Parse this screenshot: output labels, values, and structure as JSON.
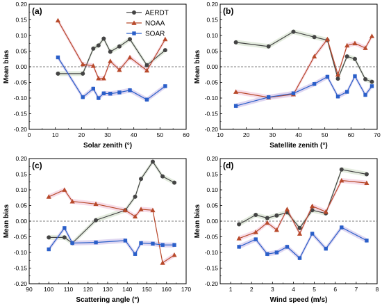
{
  "chart_data": [
    {
      "type": "line",
      "panel_label": "(a)",
      "xlabel": "Solar zenith (°)",
      "ylabel": "Mean bias",
      "xlim": [
        0,
        60
      ],
      "ylim": [
        -0.2,
        0.2
      ],
      "xticks": [
        "0",
        "10",
        "20",
        "30",
        "40",
        "50",
        "60"
      ],
      "yticks": [
        "-0.20",
        "-0.15",
        "-0.10",
        "-0.05",
        "0.00",
        "0.05",
        "0.10",
        "0.15",
        "0.20"
      ],
      "legend": {
        "placement": "top-right"
      },
      "series": [
        {
          "name": "AERDT",
          "x": [
            11,
            20.5,
            24.5,
            26.5,
            28.5,
            31,
            34.5,
            38.5,
            45,
            52
          ],
          "y": [
            -0.022,
            -0.022,
            0.058,
            0.068,
            0.09,
            0.048,
            0.065,
            0.088,
            0.005,
            0.053
          ]
        },
        {
          "name": "NOAA",
          "x": [
            11,
            20.5,
            24.5,
            26.5,
            28.5,
            31,
            34.5,
            38.5,
            45,
            52
          ],
          "y": [
            0.148,
            0.008,
            0.003,
            -0.037,
            -0.037,
            0.018,
            -0.01,
            0.03,
            -0.012,
            0.088
          ]
        },
        {
          "name": "SOAR",
          "x": [
            11,
            20.5,
            24.5,
            26.5,
            28.5,
            31,
            34.5,
            38.5,
            45,
            52
          ],
          "y": [
            0.03,
            -0.097,
            -0.07,
            -0.1,
            -0.085,
            -0.086,
            -0.082,
            -0.075,
            -0.105,
            -0.062
          ]
        }
      ]
    },
    {
      "type": "line",
      "panel_label": "(b)",
      "xlabel": "Satellite zenith (°)",
      "ylabel": "Mean bias",
      "xlim": [
        10,
        70
      ],
      "ylim": [
        -0.2,
        0.2
      ],
      "xticks": [
        "10",
        "20",
        "30",
        "40",
        "50",
        "60",
        "70"
      ],
      "yticks": [
        "-0.20",
        "-0.15",
        "-0.10",
        "-0.05",
        "0.00",
        "0.05",
        "0.10",
        "0.15",
        "0.20"
      ],
      "series": [
        {
          "name": "AERDT",
          "x": [
            16,
            28.5,
            38,
            46,
            51,
            55,
            58.5,
            61.5,
            65.5,
            68
          ],
          "y": [
            0.078,
            0.065,
            0.112,
            0.095,
            0.085,
            -0.038,
            0.033,
            0.025,
            -0.04,
            -0.048
          ]
        },
        {
          "name": "NOAA",
          "x": [
            16,
            28.5,
            38,
            46,
            51,
            55,
            58.5,
            61.5,
            65.5,
            68
          ],
          "y": [
            -0.08,
            -0.098,
            -0.088,
            0.033,
            0.088,
            -0.025,
            0.068,
            0.075,
            0.06,
            0.098
          ]
        },
        {
          "name": "SOAR",
          "x": [
            16,
            28.5,
            38,
            46,
            51,
            55,
            58.5,
            61.5,
            65.5,
            68
          ],
          "y": [
            -0.125,
            -0.097,
            -0.085,
            -0.055,
            -0.032,
            -0.095,
            -0.08,
            -0.03,
            -0.09,
            -0.062
          ]
        }
      ]
    },
    {
      "type": "line",
      "panel_label": "(c)",
      "xlabel": "Scattering angle (°)",
      "ylabel": "Mean bias",
      "xlim": [
        90,
        170
      ],
      "ylim": [
        -0.2,
        0.2
      ],
      "xticks": [
        "90",
        "100",
        "110",
        "120",
        "130",
        "140",
        "150",
        "160",
        "170"
      ],
      "yticks": [
        "-0.20",
        "-0.15",
        "-0.10",
        "-0.05",
        "0.00",
        "0.05",
        "0.10",
        "0.15",
        "0.20"
      ],
      "series": [
        {
          "name": "AERDT",
          "x": [
            100,
            108,
            112,
            124,
            139,
            144,
            147,
            153,
            158,
            164
          ],
          "y": [
            -0.052,
            -0.052,
            -0.07,
            0.003,
            0.035,
            0.078,
            0.135,
            0.19,
            0.143,
            0.123
          ]
        },
        {
          "name": "NOAA",
          "x": [
            100,
            108,
            112,
            124,
            139,
            144,
            147,
            153,
            158,
            164
          ],
          "y": [
            0.078,
            0.1,
            0.063,
            0.055,
            0.035,
            0.015,
            0.038,
            0.035,
            -0.133,
            -0.108
          ]
        },
        {
          "name": "SOAR",
          "x": [
            100,
            108,
            112,
            124,
            139,
            144,
            147,
            153,
            158,
            164
          ],
          "y": [
            -0.09,
            -0.022,
            -0.07,
            -0.068,
            -0.062,
            -0.105,
            -0.07,
            -0.072,
            -0.076,
            -0.076
          ]
        }
      ]
    },
    {
      "type": "line",
      "panel_label": "(d)",
      "xlabel": "Wind speed (m/s)",
      "ylabel": "Mean bias",
      "xlim": [
        0.5,
        8
      ],
      "ylim": [
        -0.2,
        0.2
      ],
      "xticks": [
        "1",
        "2",
        "3",
        "4",
        "5",
        "6",
        "7",
        "8"
      ],
      "yticks": [
        "-0.20",
        "-0.15",
        "-0.10",
        "-0.05",
        "0.00",
        "0.05",
        "0.10",
        "0.15",
        "0.20"
      ],
      "series": [
        {
          "name": "AERDT",
          "x": [
            1.4,
            2.2,
            2.75,
            3.2,
            3.7,
            4.3,
            4.9,
            5.55,
            6.3,
            7.5
          ],
          "y": [
            -0.01,
            0.02,
            0.01,
            0.018,
            0.028,
            -0.022,
            0.035,
            0.025,
            0.165,
            0.15
          ]
        },
        {
          "name": "NOAA",
          "x": [
            1.4,
            2.2,
            2.75,
            3.2,
            3.7,
            4.3,
            4.9,
            5.55,
            6.3,
            7.5
          ],
          "y": [
            -0.055,
            -0.035,
            -0.005,
            -0.028,
            0.038,
            -0.04,
            0.048,
            0.03,
            0.13,
            0.122
          ]
        },
        {
          "name": "SOAR",
          "x": [
            1.4,
            2.2,
            2.75,
            3.2,
            3.7,
            4.3,
            4.9,
            5.55,
            6.3,
            7.5
          ],
          "y": [
            -0.082,
            -0.058,
            -0.105,
            -0.1,
            -0.082,
            -0.118,
            -0.04,
            -0.088,
            -0.02,
            -0.062
          ]
        }
      ]
    }
  ],
  "colors": {
    "AERDT": "#444444",
    "NOAA": "#b84a2b",
    "SOAR": "#2a5fc9",
    "band_aerdt": "#dfe9d9",
    "band_noaa": "#f6d6e4",
    "band_soar": "#d9d0ef"
  }
}
